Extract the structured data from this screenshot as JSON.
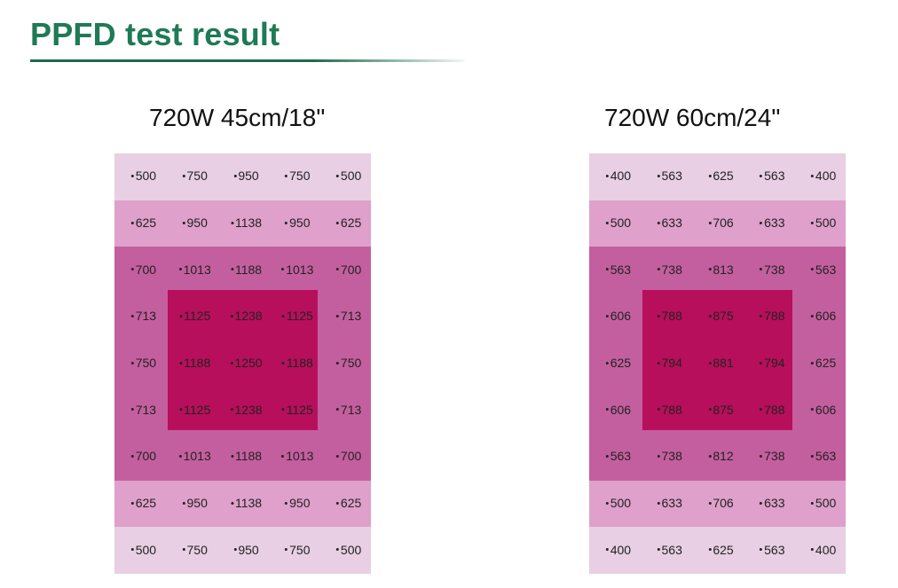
{
  "page": {
    "title": "PPFD test result"
  },
  "colors": {
    "title": "#1f7a56",
    "band_outer": "#e8cfe3",
    "band_mid": "#dfa0cb",
    "band_inner": "#c45f9f",
    "band_core": "#b70f5c"
  },
  "chart_data": [
    {
      "type": "heatmap",
      "title": "720W 45cm/18\"",
      "rows": 9,
      "cols": 5,
      "values": [
        [
          500,
          750,
          950,
          750,
          500
        ],
        [
          625,
          950,
          1138,
          950,
          625
        ],
        [
          700,
          1013,
          1188,
          1013,
          700
        ],
        [
          713,
          1125,
          1238,
          1125,
          713
        ],
        [
          750,
          1188,
          1250,
          1188,
          750
        ],
        [
          713,
          1125,
          1238,
          1125,
          713
        ],
        [
          700,
          1013,
          1188,
          1013,
          700
        ],
        [
          625,
          950,
          1138,
          950,
          625
        ],
        [
          500,
          750,
          950,
          750,
          500
        ]
      ]
    },
    {
      "type": "heatmap",
      "title": "720W 60cm/24\"",
      "rows": 9,
      "cols": 5,
      "values": [
        [
          400,
          563,
          625,
          563,
          400
        ],
        [
          500,
          633,
          706,
          633,
          500
        ],
        [
          563,
          738,
          813,
          738,
          563
        ],
        [
          606,
          788,
          875,
          788,
          606
        ],
        [
          625,
          794,
          881,
          794,
          625
        ],
        [
          606,
          788,
          875,
          788,
          606
        ],
        [
          563,
          738,
          812,
          738,
          563
        ],
        [
          500,
          633,
          706,
          633,
          500
        ],
        [
          400,
          563,
          625,
          563,
          400
        ]
      ]
    }
  ]
}
